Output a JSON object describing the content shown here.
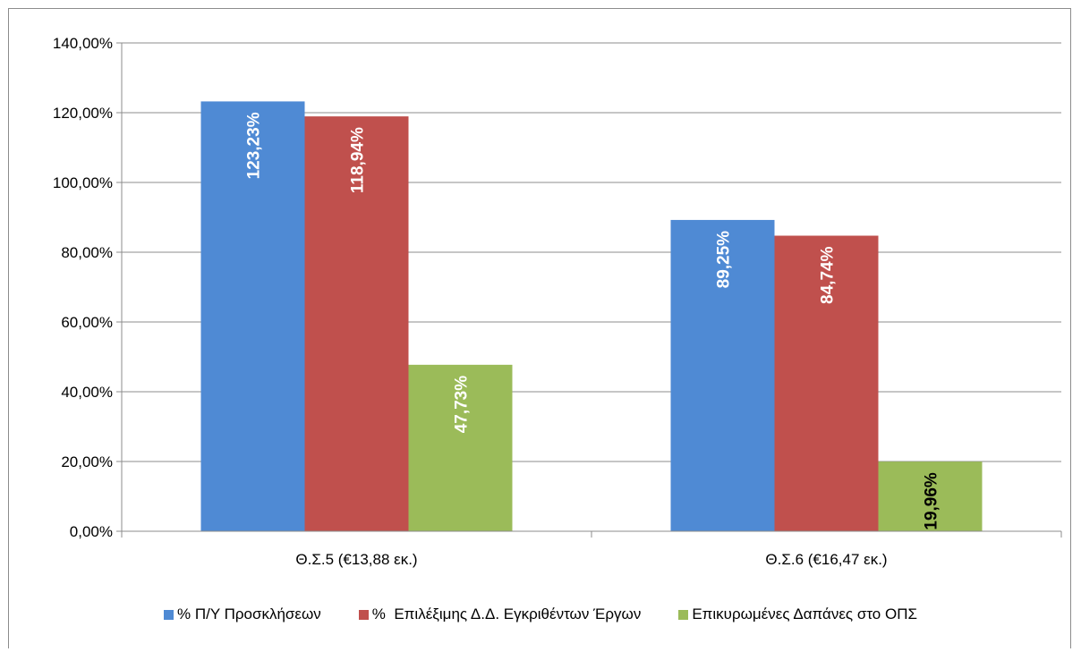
{
  "chart_data": {
    "type": "bar",
    "categories": [
      "Θ.Σ.5 (€13,88 εκ.)",
      "Θ.Σ.6 (€16,47 εκ.)"
    ],
    "series": [
      {
        "name": "% Π/Υ Προσκλήσεων",
        "values": [
          123.23,
          89.25
        ],
        "labels": [
          "123,23%",
          "89,25%"
        ],
        "color": "#4f8ad4",
        "label_color": "#ffffff"
      },
      {
        "name": "%  Επιλέξιμης Δ.Δ. Εγκριθέντων Έργων",
        "values": [
          118.94,
          84.74
        ],
        "labels": [
          "118,94%",
          "84,74%"
        ],
        "color": "#c0504d",
        "label_color": "#ffffff"
      },
      {
        "name": "Επικυρωμένες Δαπάνες στο ΟΠΣ",
        "values": [
          47.73,
          19.96
        ],
        "labels": [
          "47,73%",
          "19,96%"
        ],
        "color": "#9bbb59",
        "label_color": [
          "#ffffff",
          "#000000"
        ]
      }
    ],
    "ylim": [
      0,
      140
    ],
    "yticks": [
      "0,00%",
      "20,00%",
      "40,00%",
      "60,00%",
      "80,00%",
      "100,00%",
      "120,00%",
      "140,00%"
    ],
    "grid": true,
    "legend_position": "bottom"
  }
}
